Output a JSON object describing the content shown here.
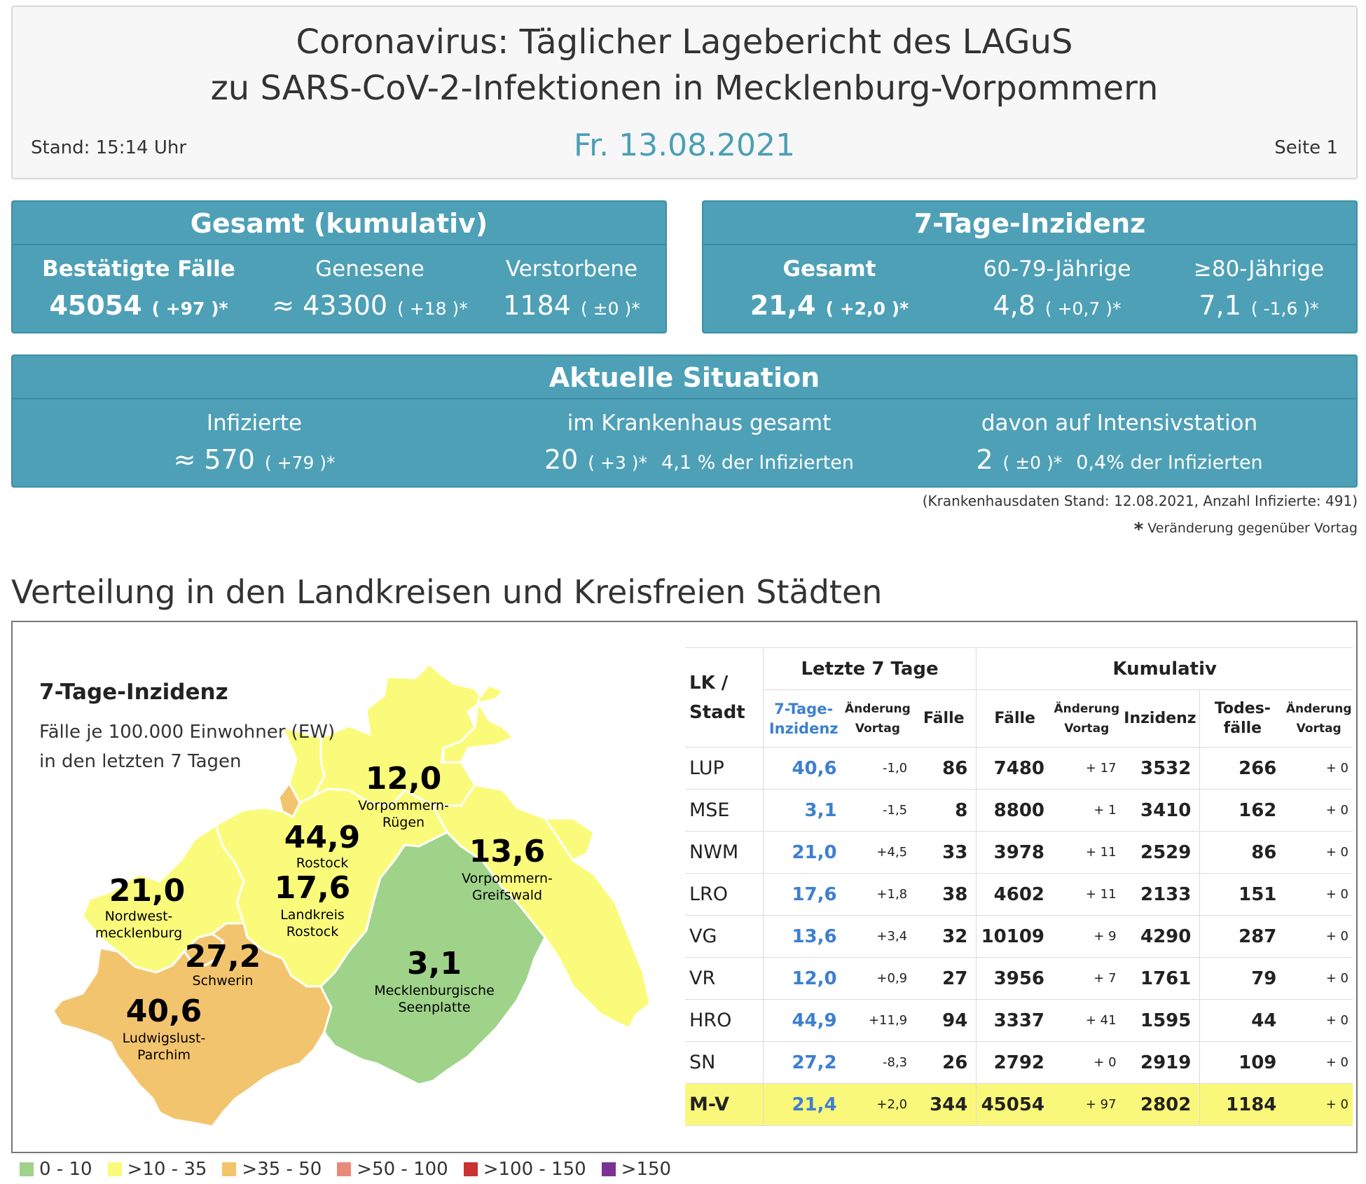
{
  "header": {
    "title_line1": "Coronavirus: Täglicher Lagebericht des LAGuS",
    "title_line2": "zu SARS-CoV-2-Infektionen in Mecklenburg-Vorpommern",
    "date": "Fr. 13.08.2021",
    "stand": "Stand: 15:14 Uhr",
    "page": "Seite 1"
  },
  "gesamt": {
    "title": "Gesamt (kumulativ)",
    "items": [
      {
        "label": "Bestätigte Fälle",
        "value": "45054",
        "change": "( +97 )*"
      },
      {
        "label": "Genesene",
        "value": "≈ 43300",
        "change": "( +18 )*"
      },
      {
        "label": "Verstorbene",
        "value": "1184",
        "change": "( ±0 )*"
      }
    ]
  },
  "inzidenz": {
    "title": "7-Tage-Inzidenz",
    "items": [
      {
        "label": "Gesamt",
        "value": "21,4",
        "change": "( +2,0 )*"
      },
      {
        "label": "60-79-Jährige",
        "value": "4,8",
        "change": "( +0,7 )*"
      },
      {
        "label": "≥80-Jährige",
        "value": "7,1",
        "change": "( -1,6 )*"
      }
    ]
  },
  "situation": {
    "title": "Aktuelle Situation",
    "items": [
      {
        "label": "Infizierte",
        "value": "≈ 570",
        "change": "( +79 )*",
        "note": ""
      },
      {
        "label": "im Krankenhaus gesamt",
        "value": "20",
        "change": "( +3 )*",
        "note": "4,1 % der Infizierten"
      },
      {
        "label": "davon auf Intensivstation",
        "value": "2",
        "change": "( ±0 )*",
        "note": "0,4% der Infizierten"
      }
    ]
  },
  "footnotes": {
    "hospital": "(Krankenhausdaten Stand: 12.08.2021, Anzahl Infizierte: 491)",
    "star": "*",
    "change": "Veränderung gegenüber Vortag"
  },
  "section_title": "Verteilung in den Landkreisen und Kreisfreien Städten",
  "map": {
    "title": "7-Tage-Inzidenz",
    "subtitle1": "Fälle je 100.000 Einwohner (EW)",
    "subtitle2": "in den letzten 7 Tagen",
    "colors": {
      "green": "#9fd38a",
      "yellow": "#fbfb7b",
      "orange": "#f3c46e"
    },
    "regions": [
      {
        "value": "12,0",
        "name1": "Vorpommern-",
        "name2": "Rügen"
      },
      {
        "value": "44,9",
        "name1": "Rostock",
        "name2": ""
      },
      {
        "value": "13,6",
        "name1": "Vorpommern-",
        "name2": "Greifswald"
      },
      {
        "value": "21,0",
        "name1": "Nordwest-",
        "name2": "mecklenburg"
      },
      {
        "value": "17,6",
        "name1": "Landkreis",
        "name2": "Rostock"
      },
      {
        "value": "27,2",
        "name1": "Schwerin",
        "name2": ""
      },
      {
        "value": "3,1",
        "name1": "Mecklenburgische",
        "name2": "Seenplatte"
      },
      {
        "value": "40,6",
        "name1": "Ludwigslust-",
        "name2": "Parchim"
      }
    ]
  },
  "table": {
    "group_last7": "Letzte 7 Tage",
    "group_cum": "Kumulativ",
    "col_lk1": "LK /",
    "col_lk2": "Stadt",
    "col_inz1": "7-Tage-",
    "col_inz2": "Inzidenz",
    "col_aend1": "Änderung",
    "col_aend2": "Vortag",
    "col_faelle7": "Fälle",
    "col_faelle": "Fälle",
    "col_inzidenz": "Inzidenz",
    "col_tod1": "Todes-",
    "col_tod2": "fälle",
    "rows": [
      [
        "LUP",
        "40,6",
        "-1,0",
        "86",
        "7480",
        "+ 17",
        "3532",
        "266",
        "+ 0"
      ],
      [
        "MSE",
        "3,1",
        "-1,5",
        "8",
        "8800",
        "+ 1",
        "3410",
        "162",
        "+ 0"
      ],
      [
        "NWM",
        "21,0",
        "+4,5",
        "33",
        "3978",
        "+ 11",
        "2529",
        "86",
        "+ 0"
      ],
      [
        "LRO",
        "17,6",
        "+1,8",
        "38",
        "4602",
        "+ 11",
        "2133",
        "151",
        "+ 0"
      ],
      [
        "VG",
        "13,6",
        "+3,4",
        "32",
        "10109",
        "+ 9",
        "4290",
        "287",
        "+ 0"
      ],
      [
        "VR",
        "12,0",
        "+0,9",
        "27",
        "3956",
        "+ 7",
        "1761",
        "79",
        "+ 0"
      ],
      [
        "HRO",
        "44,9",
        "+11,9",
        "94",
        "3337",
        "+ 41",
        "1595",
        "44",
        "+ 0"
      ],
      [
        "SN",
        "27,2",
        "-8,3",
        "26",
        "2792",
        "+ 0",
        "2919",
        "109",
        "+ 0"
      ]
    ],
    "total": [
      "M-V",
      "21,4",
      "+2,0",
      "344",
      "45054",
      "+ 97",
      "2802",
      "1184",
      "+ 0"
    ]
  },
  "legend": [
    {
      "label": "0 - 10",
      "color": "#9fd38a"
    },
    {
      "label": ">10 - 35",
      "color": "#fbfb7b"
    },
    {
      "label": ">35 - 50",
      "color": "#f3c46e"
    },
    {
      "label": ">50 - 100",
      "color": "#e88a7a"
    },
    {
      "label": ">100 - 150",
      "color": "#c8322f"
    },
    {
      "label": ">150",
      "color": "#7b3294"
    }
  ]
}
